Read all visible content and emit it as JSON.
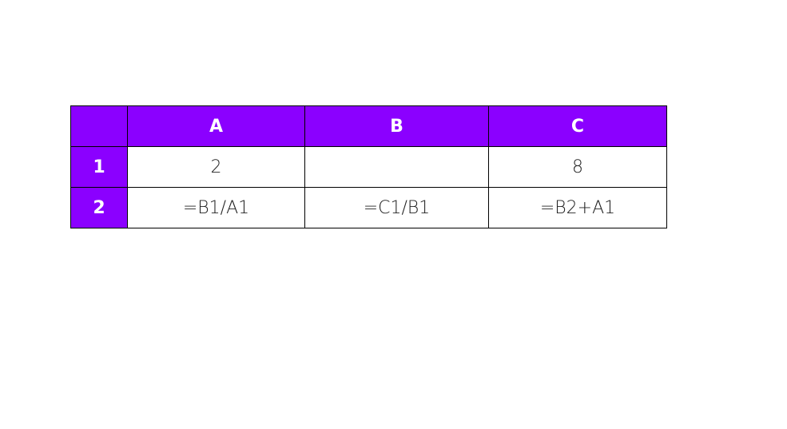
{
  "theme": {
    "header_color": "#8B00FF"
  },
  "columns": [
    "",
    "A",
    "B",
    "C"
  ],
  "rows": [
    {
      "label": "1",
      "cells": [
        "2",
        "",
        "8"
      ]
    },
    {
      "label": "2",
      "cells": [
        "=B1/A1",
        "=C1/B1",
        "=B2+A1"
      ]
    }
  ]
}
